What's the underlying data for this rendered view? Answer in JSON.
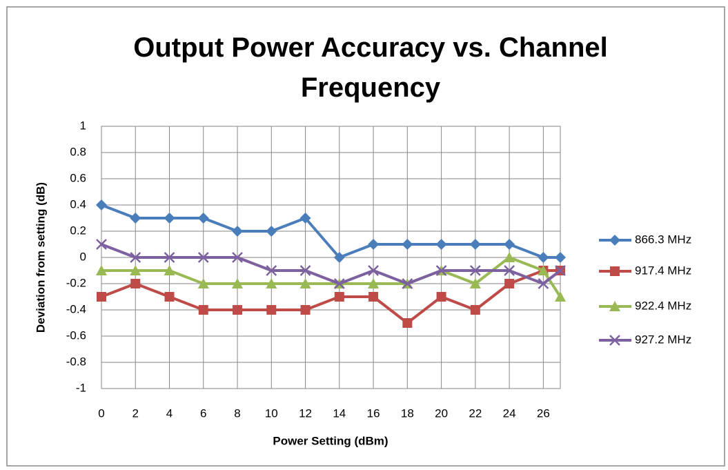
{
  "chart_data": {
    "type": "line",
    "title": "Output Power Accuracy vs. Channel Frequency",
    "x_label": "Power Setting (dBm)",
    "y_label": "Deviation from setting (dB)",
    "x": [
      0,
      2,
      4,
      6,
      8,
      10,
      12,
      14,
      16,
      18,
      20,
      22,
      24,
      26,
      27
    ],
    "xlim": [
      0,
      27
    ],
    "xticks": [
      0,
      2,
      4,
      6,
      8,
      10,
      12,
      14,
      16,
      18,
      20,
      22,
      24,
      26
    ],
    "ylim": [
      -1,
      1
    ],
    "yticks": [
      1,
      0.8,
      0.6,
      0.4,
      0.2,
      0,
      -0.2,
      -0.4,
      -0.6,
      -0.8,
      -1
    ],
    "grid": true,
    "legend": "right",
    "series": [
      {
        "name": "866.3 MHz",
        "color": "#4a7ebb",
        "marker": "diamond",
        "values": [
          0.4,
          0.3,
          0.3,
          0.3,
          0.2,
          0.2,
          0.3,
          0,
          0.1,
          0.1,
          0.1,
          0.1,
          0.1,
          0,
          0
        ]
      },
      {
        "name": "917.4 MHz",
        "color": "#be4b48",
        "marker": "square",
        "values": [
          -0.3,
          -0.2,
          -0.3,
          -0.4,
          -0.4,
          -0.4,
          -0.4,
          -0.3,
          -0.3,
          -0.5,
          -0.3,
          -0.4,
          -0.2,
          -0.1,
          -0.1
        ]
      },
      {
        "name": "922.4 MHz",
        "color": "#98b954",
        "marker": "triangle",
        "values": [
          -0.1,
          -0.1,
          -0.1,
          -0.2,
          -0.2,
          -0.2,
          -0.2,
          -0.2,
          -0.2,
          -0.2,
          -0.1,
          -0.2,
          0,
          -0.1,
          -0.3
        ]
      },
      {
        "name": "927.2 MHz",
        "color": "#7d60a0",
        "marker": "x",
        "values": [
          0.1,
          0,
          0,
          0,
          0,
          -0.1,
          -0.1,
          -0.2,
          -0.1,
          -0.2,
          -0.1,
          -0.1,
          -0.1,
          -0.2,
          -0.1
        ]
      }
    ]
  }
}
